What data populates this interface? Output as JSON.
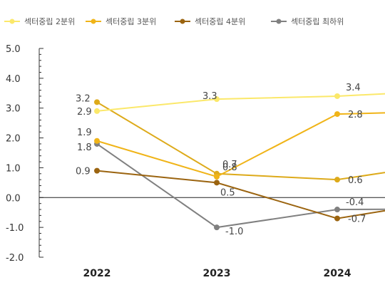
{
  "chart_data": {
    "type": "line",
    "categories": [
      "2022",
      "2023",
      "2024"
    ],
    "ylim": [
      -2.0,
      5.0
    ],
    "yticks": [
      "5.0",
      "4.0",
      "3.0",
      "2.0",
      "1.0",
      "0.0",
      "-1.0",
      "-2.0"
    ],
    "grid": false,
    "legend_position": "top",
    "series": [
      {
        "name": "섹터중립 2분위",
        "color": "#fbe86a",
        "values": [
          2.9,
          3.3,
          3.4
        ],
        "labels": [
          "2.9",
          "3.3",
          "3.4"
        ],
        "continuation_value": 3.6
      },
      {
        "name": "섹터중립 3분위",
        "color": "#f0b418",
        "values": [
          1.9,
          0.7,
          2.8
        ],
        "labels": [
          "1.9",
          "0.7",
          "2.8"
        ],
        "continuation_value": 2.9
      },
      {
        "name": "섹터중립 4분위",
        "color": "#9b6410",
        "values": [
          0.9,
          0.5,
          -0.7
        ],
        "labels": [
          "0.9",
          "0.5",
          "-0.7"
        ],
        "continuation_value": -0.05
      },
      {
        "name": "섹터중립 최하위",
        "color": "#808080",
        "values": [
          1.8,
          -1.0,
          -0.4
        ],
        "labels": [
          "1.8",
          "-1.0",
          "-0.4"
        ],
        "continuation_value": -0.38
      },
      {
        "name": "",
        "color": "#ddaa1a",
        "values": [
          3.2,
          0.8,
          0.6
        ],
        "labels": [
          "3.2",
          "0.8",
          "0.6"
        ],
        "continuation_value": 1.2
      }
    ]
  }
}
